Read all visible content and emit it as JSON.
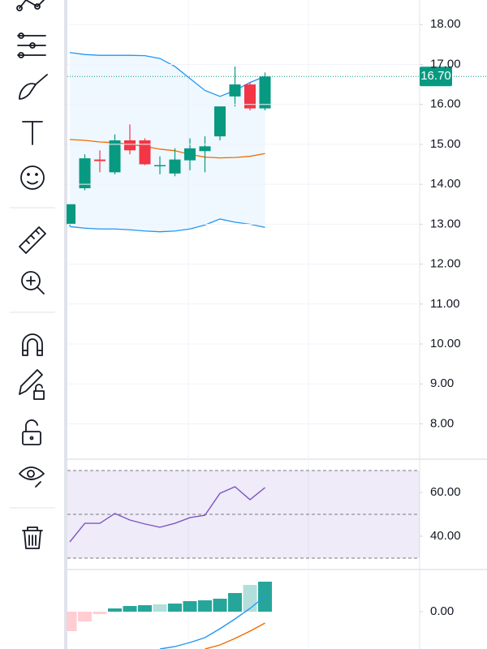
{
  "chart_data": [
    {
      "type": "candlestick",
      "open": [
        13.0,
        13.9,
        14.62,
        14.3,
        15.1,
        15.1,
        14.45,
        14.27,
        14.6,
        14.83,
        15.2,
        16.2,
        16.5,
        15.9
      ],
      "high": [
        13.5,
        14.75,
        14.85,
        15.25,
        15.5,
        15.15,
        14.7,
        14.9,
        15.15,
        15.2,
        15.95,
        16.95,
        16.55,
        16.8
      ],
      "low": [
        12.95,
        13.85,
        14.3,
        14.25,
        14.75,
        14.48,
        14.25,
        14.2,
        14.35,
        14.3,
        15.1,
        15.95,
        15.85,
        15.85
      ],
      "close": [
        13.5,
        14.65,
        14.58,
        15.1,
        14.85,
        14.5,
        14.48,
        14.62,
        14.9,
        14.95,
        15.95,
        16.5,
        15.9,
        16.7
      ],
      "up_color": "#089981",
      "down_color": "#f23645",
      "bands": {
        "upper": [
          17.3,
          17.25,
          17.23,
          17.23,
          17.23,
          17.22,
          17.15,
          16.95,
          16.65,
          16.35,
          16.2,
          16.35,
          16.55,
          16.7
        ],
        "middle": [
          15.12,
          15.1,
          15.06,
          15.04,
          15.0,
          14.95,
          14.88,
          14.84,
          14.75,
          14.68,
          14.66,
          14.67,
          14.7,
          14.77
        ],
        "lower": [
          12.94,
          12.9,
          12.88,
          12.88,
          12.86,
          12.83,
          12.81,
          12.83,
          12.88,
          12.98,
          13.13,
          13.05,
          13.0,
          12.92
        ],
        "line_color": "#2196f3",
        "middle_color": "#ef6c00"
      },
      "current_price": {
        "value": 16.7,
        "label": "16.70"
      },
      "ylim": [
        7.115,
        18.615
      ],
      "yticks": [
        {
          "value": 18,
          "label": "18.00"
        },
        {
          "value": 17,
          "label": "17.00"
        },
        {
          "value": 16,
          "label": "16.00"
        },
        {
          "value": 15,
          "label": "15.00"
        },
        {
          "value": 14,
          "label": "14.00"
        },
        {
          "value": 13,
          "label": "13.00"
        },
        {
          "value": 12,
          "label": "12.00"
        },
        {
          "value": 11,
          "label": "11.00"
        },
        {
          "value": 10,
          "label": "10.00"
        },
        {
          "value": 9,
          "label": "9.00"
        },
        {
          "value": 8,
          "label": "8.00"
        }
      ],
      "grid": true
    },
    {
      "type": "line",
      "values": [
        37.4,
        45.9,
        45.9,
        50.4,
        47.4,
        45.6,
        44.1,
        45.9,
        48.5,
        49.6,
        59.6,
        62.6,
        56.7,
        62.2
      ],
      "color": "#7e57c2",
      "levels": [
        70,
        50,
        30
      ],
      "ylim": [
        24.8,
        75.2
      ],
      "yticks": [
        {
          "value": 60,
          "label": "60.00"
        },
        {
          "value": 40,
          "label": "40.00"
        }
      ]
    },
    {
      "type": "bar",
      "values": [
        -0.12,
        -0.06,
        -0.015,
        0.02,
        0.035,
        0.04,
        0.045,
        0.05,
        0.065,
        0.07,
        0.08,
        0.115,
        0.165,
        0.185
      ],
      "colors": [
        "#ffcdd2",
        "#ffcdd2",
        "#ffcdd2",
        "#26a69a",
        "#26a69a",
        "#26a69a",
        "#b2dfdb",
        "#26a69a",
        "#26a69a",
        "#26a69a",
        "#26a69a",
        "#26a69a",
        "#b2dfdb",
        "#26a69a"
      ],
      "series": [
        {
          "color": "#2196f3",
          "values": [
            null,
            null,
            null,
            null,
            null,
            null,
            -0.23,
            -0.215,
            -0.19,
            -0.16,
            -0.105,
            -0.045,
            0.02,
            0.095
          ]
        },
        {
          "color": "#ef6c00",
          "values": [
            null,
            null,
            null,
            null,
            null,
            null,
            null,
            null,
            null,
            -0.23,
            -0.205,
            -0.165,
            -0.12,
            -0.07
          ]
        }
      ],
      "ylim": [
        -0.23,
        0.26
      ],
      "yticks": [
        {
          "value": 0,
          "label": "0.00"
        }
      ]
    }
  ]
}
